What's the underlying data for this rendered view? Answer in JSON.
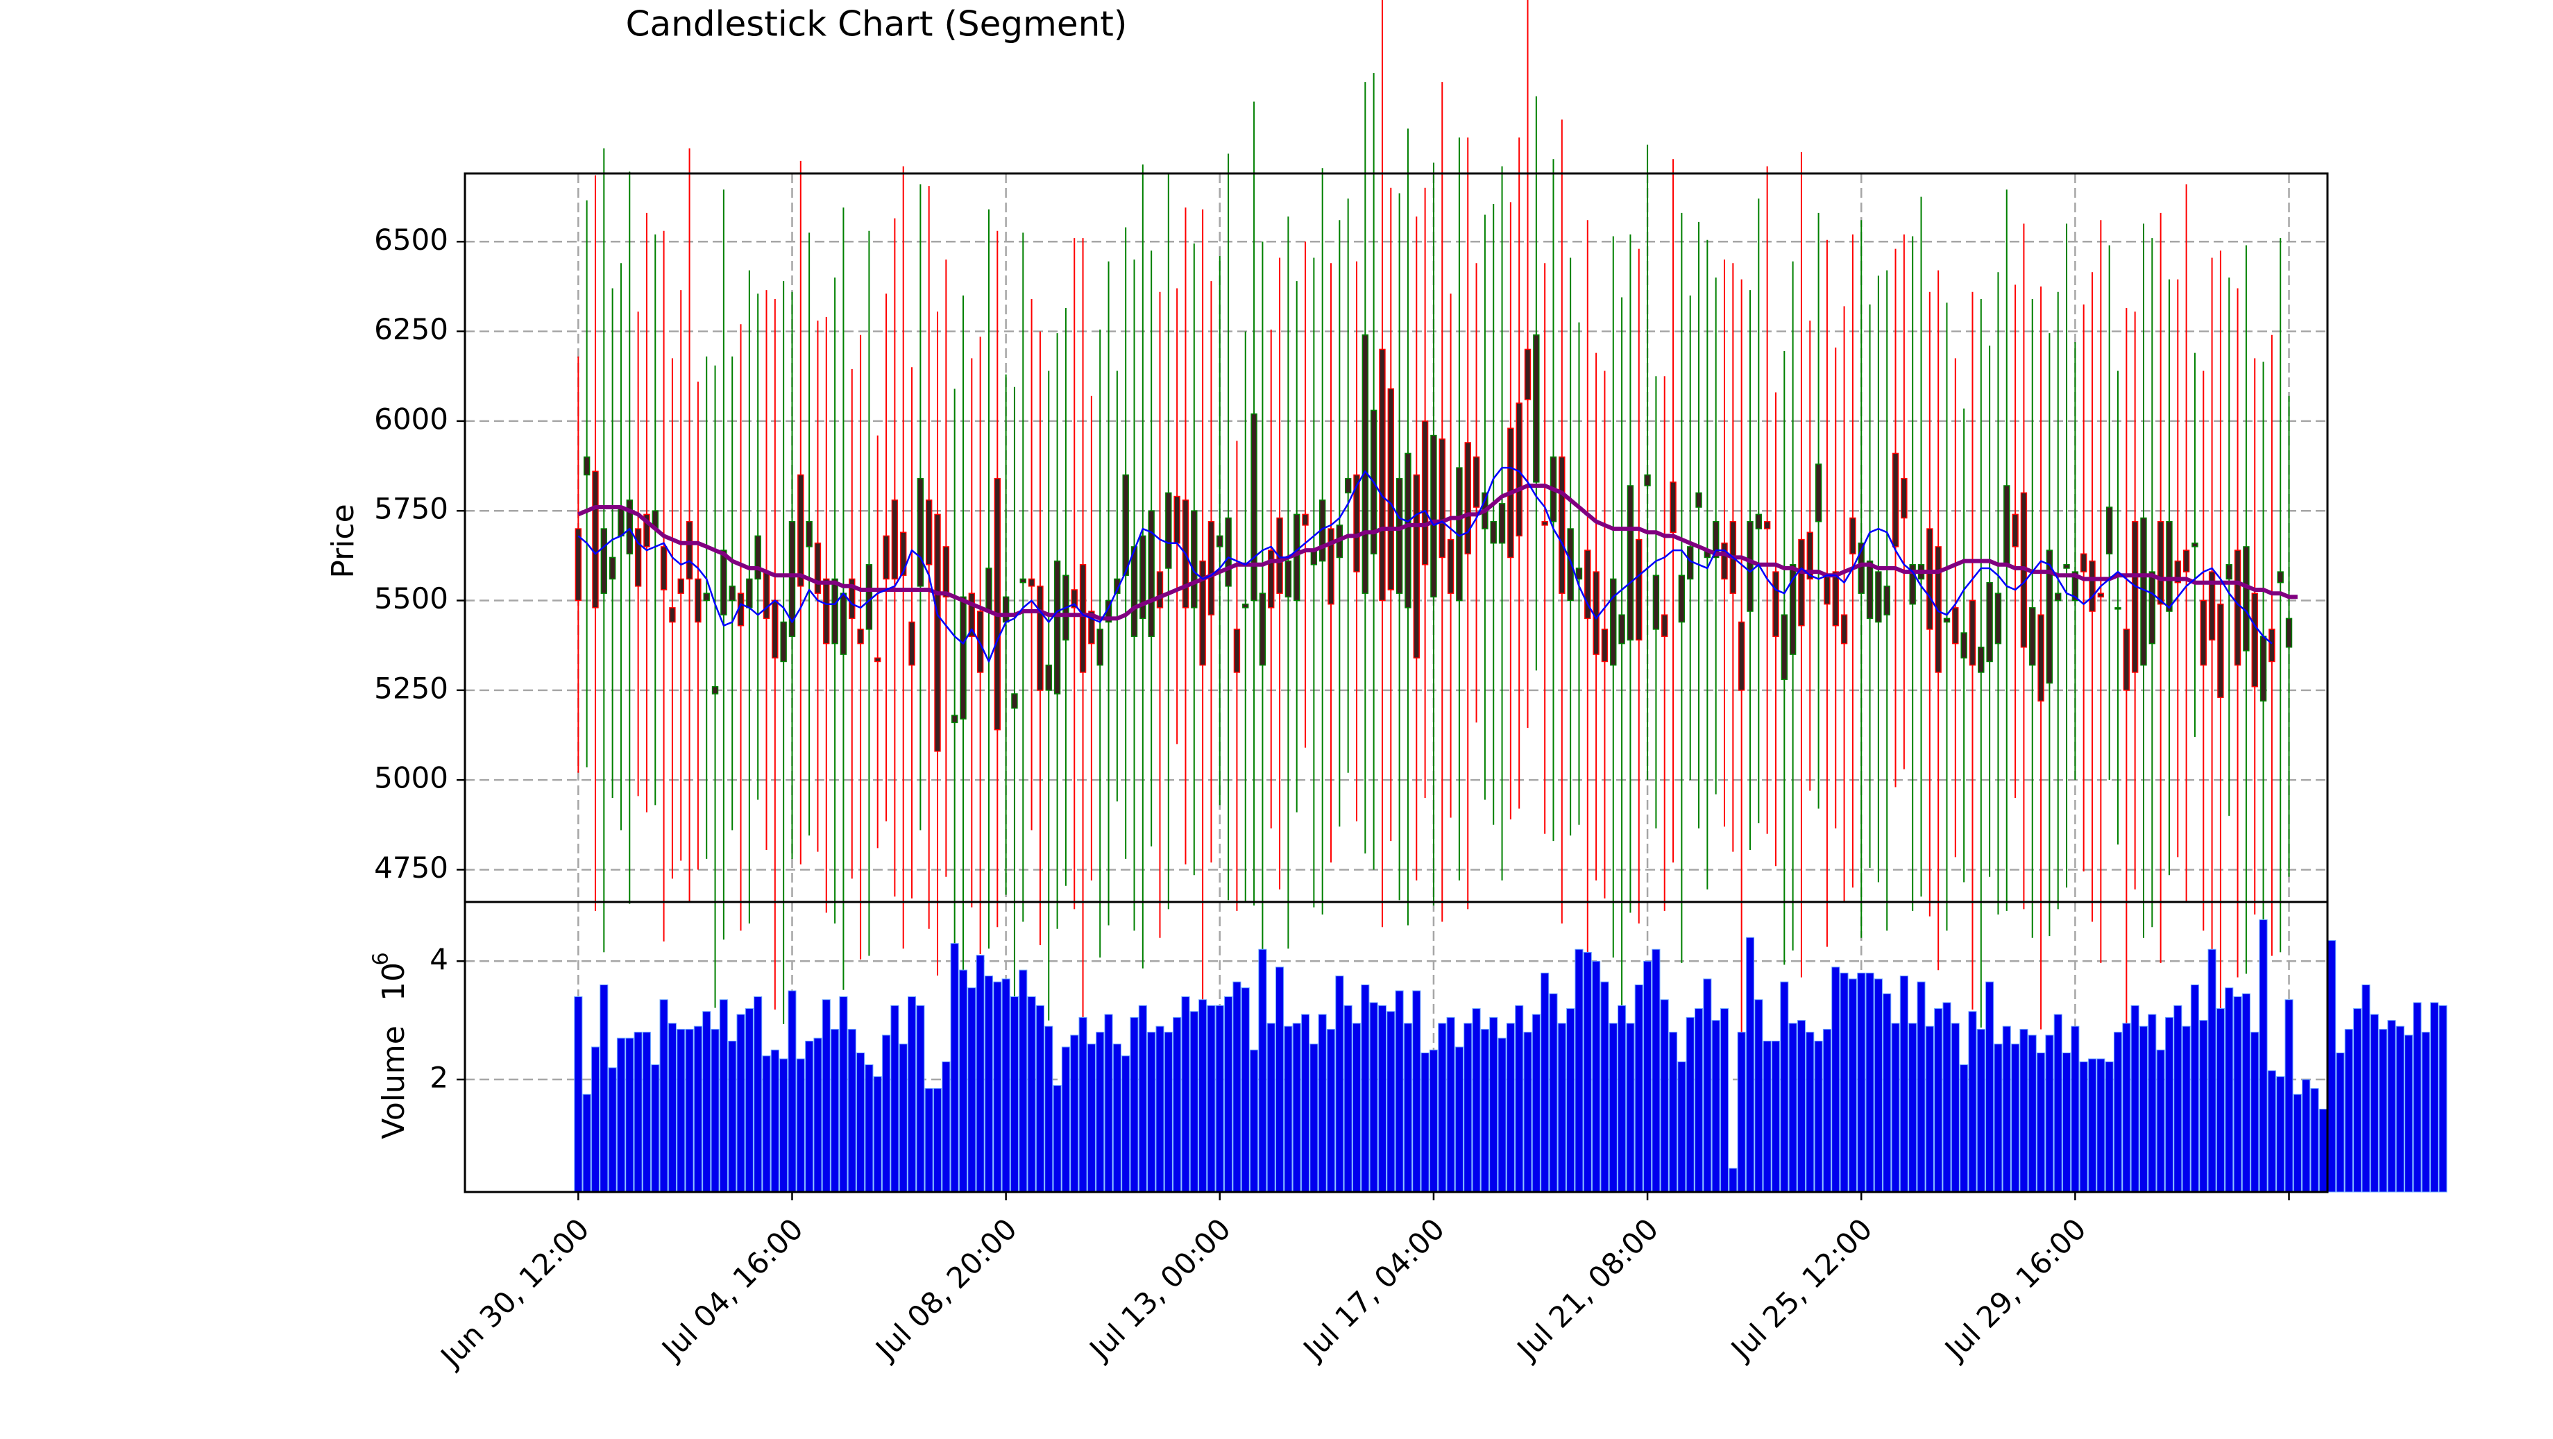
{
  "chart_data": {
    "type": "candlestick",
    "title": "Candlestick Chart (Segment)",
    "price_panel": {
      "ylabel": "Price",
      "ylim": [
        4660,
        6690
      ],
      "yticks": [
        4750,
        5000,
        5250,
        5500,
        5750,
        6000,
        6250,
        6500
      ],
      "ytick_labels": [
        "4750",
        "5000",
        "5250",
        "5500",
        "5750",
        "6000",
        "6250",
        "6500"
      ],
      "grid": true,
      "up_color": "#008000",
      "down_color": "#ff0000",
      "body_color": "#3a1f1f",
      "ma_short_color": "#0000ff",
      "ma_long_color": "#800080"
    },
    "volume_panel": {
      "ylabel": "Volume",
      "scale_label": "10",
      "scale_exponent": "6",
      "ylim": [
        0.1,
        5.0
      ],
      "yticks": [
        2,
        4
      ],
      "ytick_labels": [
        "2",
        "4"
      ],
      "grid": true,
      "bar_color": "#0000ee"
    },
    "x_range_hours": [
      -53,
      818
    ],
    "xticks": [
      {
        "hours": 0,
        "label": "Jun 30, 12:00"
      },
      {
        "hours": 100,
        "label": "Jul 04, 16:00"
      },
      {
        "hours": 200,
        "label": "Jul 08, 20:00"
      },
      {
        "hours": 300,
        "label": "Jul 13, 00:00"
      },
      {
        "hours": 400,
        "label": "Jul 17, 04:00"
      },
      {
        "hours": 500,
        "label": "Jul 21, 08:00"
      },
      {
        "hours": 600,
        "label": "Jul 25, 12:00"
      },
      {
        "hours": 700,
        "label": "Jul 29, 16:00"
      },
      {
        "hours": 800,
        "label": ""
      }
    ],
    "candles": {
      "start_hours": 0,
      "step_hours": 4,
      "open": [
        5700,
        5850,
        5860,
        5520,
        5560,
        5680,
        5630,
        5700,
        5740,
        5700,
        5650,
        5480,
        5560,
        5720,
        5560,
        5500,
        5240,
        5460,
        5500,
        5520,
        5480,
        5560,
        5580,
        5500,
        5330,
        5400,
        5850,
        5650,
        5660,
        5560,
        5380,
        5350,
        5560,
        5420,
        5420,
        5340,
        5680,
        5780,
        5690,
        5440,
        5540,
        5780,
        5740,
        5650,
        5160,
        5170,
        5520,
        5470,
        5470,
        5840,
        5440,
        5200,
        5550,
        5560,
        5540,
        5250,
        5240,
        5390,
        5530,
        5600,
        5470,
        5320,
        5440,
        5520,
        5570,
        5400,
        5450,
        5400,
        5580,
        5590,
        5790,
        5780,
        5480,
        5610,
        5720,
        5650,
        5540,
        5420,
        5480,
        5500,
        5320,
        5640,
        5730,
        5510,
        5500,
        5740,
        5600,
        5610,
        5700,
        5620,
        5800,
        5850,
        5520,
        5630,
        6200,
        6090,
        5520,
        5480,
        5850,
        6000,
        5510,
        5950,
        5670,
        5500,
        5940,
        5900,
        5700,
        5660,
        5660,
        5980,
        6050,
        6200,
        5830,
        5720,
        5720,
        5900,
        5500,
        5560,
        5640,
        5580,
        5420,
        5320,
        5380,
        5390,
        5670,
        5820,
        5420,
        5460,
        5830,
        5440,
        5560,
        5760,
        5620,
        5620,
        5660,
        5720,
        5440,
        5470,
        5700,
        5720,
        5580,
        5280,
        5350,
        5670,
        5690,
        5720,
        5570,
        5580,
        5460,
        5730,
        5520,
        5450,
        5440,
        5460,
        5910,
        5840,
        5490,
        5560,
        5700,
        5650,
        5440,
        5480,
        5340,
        5500,
        5300,
        5330,
        5380,
        5600,
        5740,
        5800,
        5320,
        5460,
        5270,
        5500,
        5590,
        5500,
        5630,
        5610,
        5520,
        5630,
        5480,
        5420,
        5720,
        5320,
        5380,
        5720,
        5470,
        5610,
        5640,
        5650,
        5500,
        5580,
        5490,
        5560,
        5640,
        5360,
        5520,
        5220,
        5420,
        5550,
        5370
      ],
      "close": [
        5500,
        5900,
        5480,
        5700,
        5620,
        5760,
        5780,
        5540,
        5650,
        5750,
        5530,
        5440,
        5520,
        5560,
        5440,
        5520,
        5260,
        5640,
        5540,
        5430,
        5560,
        5680,
        5450,
        5340,
        5440,
        5720,
        5540,
        5720,
        5520,
        5380,
        5560,
        5520,
        5450,
        5380,
        5600,
        5330,
        5560,
        5560,
        5570,
        5320,
        5840,
        5600,
        5080,
        5510,
        5180,
        5510,
        5400,
        5300,
        5590,
        5140,
        5510,
        5240,
        5560,
        5540,
        5250,
        5320,
        5610,
        5570,
        5480,
        5300,
        5380,
        5420,
        5500,
        5560,
        5850,
        5650,
        5680,
        5750,
        5480,
        5800,
        5660,
        5480,
        5750,
        5320,
        5460,
        5680,
        5730,
        5300,
        5490,
        6020,
        5520,
        5480,
        5520,
        5610,
        5740,
        5710,
        5640,
        5780,
        5490,
        5710,
        5840,
        5580,
        6240,
        6030,
        5500,
        5530,
        5840,
        5910,
        5340,
        5600,
        5960,
        5620,
        5520,
        5870,
        5630,
        5760,
        5800,
        5720,
        5770,
        5620,
        5680,
        6060,
        6240,
        5710,
        5900,
        5520,
        5700,
        5590,
        5450,
        5350,
        5330,
        5560,
        5460,
        5820,
        5390,
        5850,
        5570,
        5400,
        5690,
        5570,
        5650,
        5800,
        5640,
        5720,
        5560,
        5520,
        5250,
        5720,
        5740,
        5700,
        5400,
        5460,
        5600,
        5430,
        5560,
        5880,
        5490,
        5430,
        5380,
        5630,
        5660,
        5610,
        5580,
        5540,
        5650,
        5730,
        5600,
        5600,
        5420,
        5300,
        5450,
        5380,
        5410,
        5320,
        5370,
        5550,
        5520,
        5820,
        5650,
        5370,
        5480,
        5220,
        5640,
        5520,
        5600,
        5580,
        5580,
        5470,
        5510,
        5760,
        5480,
        5250,
        5300,
        5730,
        5580,
        5490,
        5720,
        5550,
        5580,
        5660,
        5320,
        5390,
        5230,
        5600,
        5320,
        5650,
        5260,
        5400,
        5330,
        5580,
        5450
      ]
    },
    "ma_short_color_note": "blue thin line = short moving average",
    "ma_short": [
      5680,
      5660,
      5630,
      5650,
      5670,
      5680,
      5700,
      5660,
      5640,
      5650,
      5660,
      5620,
      5600,
      5610,
      5590,
      5560,
      5490,
      5430,
      5440,
      5490,
      5480,
      5460,
      5480,
      5500,
      5480,
      5440,
      5480,
      5530,
      5500,
      5490,
      5490,
      5520,
      5490,
      5480,
      5500,
      5520,
      5530,
      5540,
      5580,
      5640,
      5620,
      5570,
      5460,
      5430,
      5400,
      5380,
      5420,
      5380,
      5330,
      5390,
      5440,
      5450,
      5480,
      5500,
      5470,
      5440,
      5470,
      5480,
      5490,
      5460,
      5450,
      5440,
      5480,
      5530,
      5580,
      5640,
      5700,
      5690,
      5670,
      5660,
      5660,
      5630,
      5580,
      5560,
      5570,
      5590,
      5620,
      5610,
      5600,
      5620,
      5640,
      5650,
      5620,
      5620,
      5640,
      5660,
      5680,
      5700,
      5710,
      5730,
      5770,
      5820,
      5860,
      5830,
      5790,
      5770,
      5730,
      5720,
      5740,
      5750,
      5710,
      5720,
      5700,
      5680,
      5690,
      5730,
      5780,
      5840,
      5870,
      5870,
      5860,
      5830,
      5790,
      5760,
      5700,
      5660,
      5610,
      5540,
      5490,
      5450,
      5480,
      5510,
      5530,
      5550,
      5570,
      5590,
      5610,
      5620,
      5640,
      5640,
      5610,
      5600,
      5590,
      5640,
      5640,
      5620,
      5600,
      5580,
      5600,
      5560,
      5530,
      5520,
      5560,
      5590,
      5570,
      5560,
      5570,
      5570,
      5550,
      5590,
      5640,
      5690,
      5700,
      5690,
      5640,
      5600,
      5580,
      5540,
      5510,
      5470,
      5460,
      5490,
      5530,
      5560,
      5590,
      5590,
      5570,
      5540,
      5530,
      5550,
      5580,
      5610,
      5600,
      5560,
      5520,
      5510,
      5490,
      5510,
      5540,
      5560,
      5580,
      5560,
      5540,
      5530,
      5520,
      5500,
      5480,
      5510,
      5540,
      5560,
      5580,
      5590,
      5560,
      5520,
      5490,
      5470,
      5430,
      5400,
      5380
    ],
    "ma_long": [
      5740,
      5750,
      5760,
      5760,
      5760,
      5760,
      5750,
      5740,
      5720,
      5700,
      5680,
      5670,
      5660,
      5660,
      5660,
      5650,
      5640,
      5630,
      5610,
      5600,
      5590,
      5590,
      5580,
      5570,
      5570,
      5570,
      5570,
      5560,
      5550,
      5550,
      5550,
      5540,
      5540,
      5530,
      5530,
      5530,
      5530,
      5530,
      5530,
      5530,
      5530,
      5530,
      5520,
      5520,
      5510,
      5500,
      5490,
      5480,
      5470,
      5460,
      5460,
      5460,
      5470,
      5470,
      5470,
      5460,
      5460,
      5460,
      5460,
      5460,
      5460,
      5450,
      5450,
      5450,
      5460,
      5480,
      5490,
      5500,
      5510,
      5520,
      5530,
      5540,
      5550,
      5560,
      5570,
      5580,
      5590,
      5600,
      5600,
      5600,
      5600,
      5610,
      5610,
      5620,
      5630,
      5640,
      5640,
      5650,
      5660,
      5670,
      5680,
      5680,
      5690,
      5690,
      5700,
      5700,
      5700,
      5710,
      5710,
      5710,
      5720,
      5720,
      5730,
      5730,
      5740,
      5740,
      5750,
      5770,
      5790,
      5800,
      5810,
      5820,
      5820,
      5820,
      5810,
      5800,
      5780,
      5760,
      5740,
      5720,
      5710,
      5700,
      5700,
      5700,
      5700,
      5690,
      5690,
      5680,
      5680,
      5670,
      5660,
      5650,
      5640,
      5630,
      5630,
      5620,
      5620,
      5610,
      5600,
      5600,
      5600,
      5590,
      5590,
      5580,
      5580,
      5580,
      5570,
      5570,
      5580,
      5590,
      5600,
      5600,
      5590,
      5590,
      5590,
      5580,
      5580,
      5580,
      5580,
      5580,
      5590,
      5600,
      5610,
      5610,
      5610,
      5610,
      5600,
      5600,
      5590,
      5590,
      5580,
      5580,
      5580,
      5570,
      5570,
      5570,
      5560,
      5560,
      5560,
      5560,
      5570,
      5570,
      5570,
      5570,
      5570,
      5560,
      5560,
      5560,
      5560,
      5550,
      5550,
      5550,
      5550,
      5550,
      5550,
      5540,
      5530,
      5530,
      5520,
      5520,
      5510,
      5510
    ],
    "volume_millions": [
      3.4,
      1.75,
      2.55,
      3.6,
      2.2,
      2.7,
      2.7,
      2.8,
      2.8,
      2.25,
      3.35,
      2.95,
      2.85,
      2.85,
      2.9,
      3.15,
      2.85,
      3.35,
      2.65,
      3.1,
      3.2,
      3.4,
      2.4,
      2.5,
      2.35,
      3.5,
      2.35,
      2.65,
      2.7,
      3.35,
      2.85,
      3.4,
      2.85,
      2.45,
      2.25,
      2.05,
      2.75,
      3.25,
      2.6,
      3.4,
      3.25,
      1.85,
      1.85,
      2.3,
      4.3,
      3.85,
      3.55,
      4.1,
      3.75,
      3.65,
      3.7,
      3.4,
      3.85,
      3.4,
      3.25,
      2.9,
      1.9,
      2.55,
      2.75,
      3.05,
      2.6,
      2.8,
      3.1,
      2.6,
      2.4,
      3.05,
      3.25,
      2.8,
      2.9,
      2.8,
      3.05,
      3.4,
      3.15,
      3.35,
      3.25,
      3.25,
      3.4,
      3.65,
      3.55,
      2.5,
      4.2,
      2.95,
      3.9,
      2.9,
      2.95,
      3.1,
      2.6,
      3.1,
      2.85,
      3.75,
      3.25,
      2.95,
      3.6,
      3.3,
      3.25,
      3.15,
      3.5,
      2.95,
      3.5,
      2.45,
      2.5,
      2.95,
      3.05,
      2.55,
      2.95,
      3.2,
      2.85,
      3.05,
      2.7,
      2.95,
      3.25,
      2.8,
      3.1,
      3.8,
      3.45,
      2.95,
      3.2,
      4.2,
      4.15,
      4.0,
      3.65,
      2.95,
      3.25,
      2.95,
      3.6,
      4.0,
      4.2,
      3.35,
      2.8,
      2.3,
      3.05,
      3.2,
      3.7,
      3.0,
      3.2,
      0.5,
      2.8,
      4.4,
      3.35,
      2.65,
      2.65,
      3.65,
      2.95,
      3.0,
      2.8,
      2.65,
      2.85,
      3.9,
      3.8,
      3.7,
      3.8,
      3.8,
      3.7,
      3.45,
      2.95,
      3.75,
      2.95,
      3.65,
      2.9,
      3.2,
      3.3,
      2.95,
      2.25,
      3.15,
      2.85,
      3.65,
      2.6,
      2.9,
      2.6,
      2.85,
      2.75,
      2.45,
      2.75,
      3.1,
      2.45,
      2.9,
      2.3,
      2.35,
      2.35,
      2.3,
      2.8,
      2.95,
      3.25,
      2.9,
      3.1,
      2.5,
      3.05,
      3.25,
      2.9,
      3.6,
      3.0,
      4.2,
      3.2,
      3.55,
      3.4,
      3.45,
      2.8,
      4.7,
      2.15,
      2.05,
      3.35,
      1.75,
      2.0,
      1.85,
      1.5,
      4.35,
      2.45,
      2.85,
      3.2,
      3.6,
      3.1,
      2.85,
      3.0,
      2.9,
      2.75,
      3.3,
      2.8,
      3.3,
      3.25
    ]
  }
}
